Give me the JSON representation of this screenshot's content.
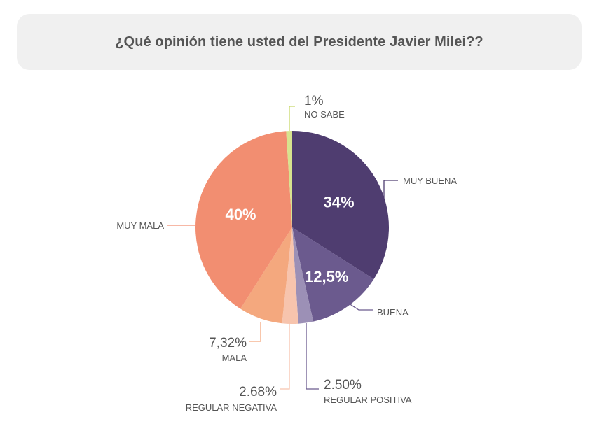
{
  "chart_data": {
    "type": "pie",
    "title": "¿Qué opinión tiene usted del Presidente Javier Milei??",
    "slices": [
      {
        "label": "MUY BUENA",
        "value": 34,
        "value_label": "34%",
        "color": "#4f3d70"
      },
      {
        "label": "BUENA",
        "value": 12.5,
        "value_label": "12,5%",
        "color": "#6b5a8e"
      },
      {
        "label": "REGULAR POSITIVA",
        "value": 2.5,
        "value_label": "2.50%",
        "color": "#9c90b6"
      },
      {
        "label": "REGULAR NEGATIVA",
        "value": 2.68,
        "value_label": "2.68%",
        "color": "#f7c4ad"
      },
      {
        "label": "MALA",
        "value": 7.32,
        "value_label": "7,32%",
        "color": "#f4a87e"
      },
      {
        "label": "MUY MALA",
        "value": 40,
        "value_label": "40%",
        "color": "#f28e71"
      },
      {
        "label": "NO SABE",
        "value": 1,
        "value_label": "1%",
        "color": "#d7e38e"
      }
    ]
  }
}
